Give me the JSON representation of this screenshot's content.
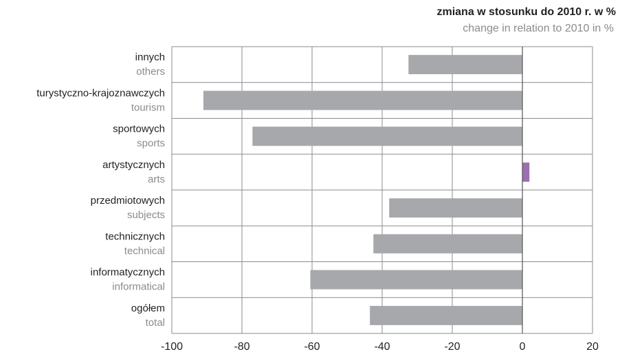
{
  "chart_data": {
    "type": "hbar",
    "title": "zmiana w stosunku do 2010 r. w %",
    "subtitle": "change in relation to 2010 in %",
    "categories": [
      "innych",
      "turystyczno-krajoznawczych",
      "sportowych",
      "artystycznych",
      "przedmiotowych",
      "technicznych",
      "informatycznych",
      "ogółem"
    ],
    "categories_en": [
      "others",
      "tourism",
      "sports",
      "arts",
      "subjects",
      "technical",
      "informatical",
      "total"
    ],
    "values": [
      -32.5,
      -91,
      -77,
      2,
      -38,
      -42.5,
      -60.5,
      -43.5
    ],
    "colors": [
      "#a7a8ab",
      "#a7a8ab",
      "#a7a8ab",
      "#9b6fb0",
      "#a7a8ab",
      "#a7a8ab",
      "#a7a8ab",
      "#a7a8ab"
    ],
    "xlim": [
      -100,
      20
    ],
    "xticks": [
      -100,
      -80,
      -60,
      -40,
      -20,
      0,
      20
    ],
    "grid": true
  }
}
